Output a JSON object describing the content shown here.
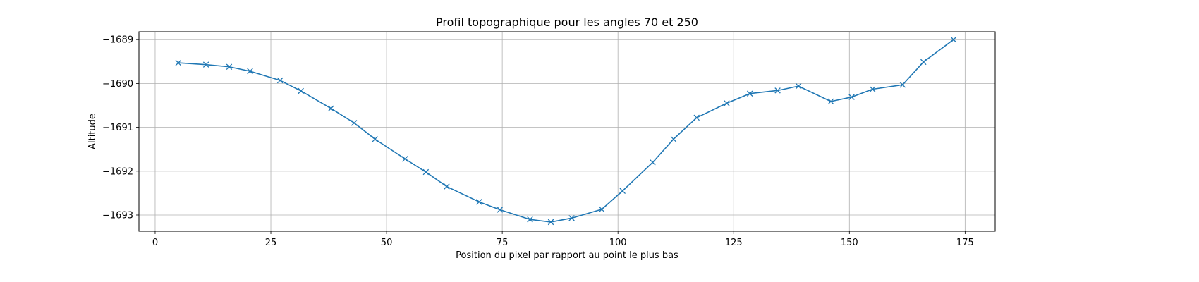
{
  "chart_data": {
    "type": "line",
    "title": "Profil topographique pour les angles 70 et 250",
    "xlabel": "Position du pixel par rapport au point le plus bas",
    "ylabel": "Altitude",
    "xlim": [
      -3.5,
      181.5
    ],
    "ylim": [
      -1693.37,
      -1688.82
    ],
    "xticks": [
      0,
      25,
      50,
      75,
      100,
      125,
      150,
      175
    ],
    "yticks": [
      -1693,
      -1692,
      -1691,
      -1690,
      -1689
    ],
    "grid": true,
    "marker": "x",
    "color": "#1f77b4",
    "series": [
      {
        "x": [
          5,
          11,
          16,
          20.5,
          27,
          31.5,
          38,
          43,
          47.5,
          54,
          58.5,
          63,
          70,
          74.5,
          81,
          85.5,
          90,
          96.5,
          101,
          107.5,
          112,
          117,
          123.5,
          128.5,
          134.5,
          139,
          146,
          150.5,
          155,
          161.5,
          166,
          172.5
        ],
        "y": [
          -1689.53,
          -1689.57,
          -1689.62,
          -1689.72,
          -1689.93,
          -1690.17,
          -1690.57,
          -1690.9,
          -1691.27,
          -1691.72,
          -1692.02,
          -1692.35,
          -1692.7,
          -1692.88,
          -1693.1,
          -1693.16,
          -1693.07,
          -1692.87,
          -1692.45,
          -1691.8,
          -1691.27,
          -1690.78,
          -1690.45,
          -1690.23,
          -1690.16,
          -1690.06,
          -1690.41,
          -1690.31,
          -1690.13,
          -1690.03,
          -1689.51,
          -1689.0
        ]
      }
    ]
  }
}
